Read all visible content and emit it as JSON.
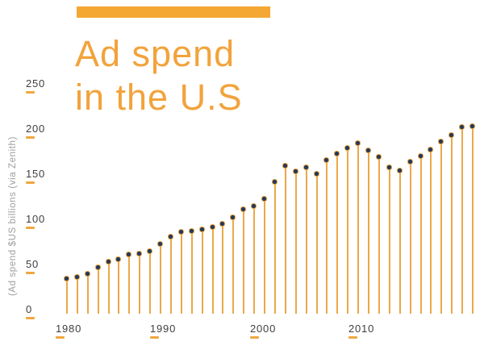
{
  "header": {
    "title_line1": "Ad spend",
    "title_line2": "in the U.S"
  },
  "colors": {
    "accent_orange": "#F5A733",
    "stem_orange": "#ECA847",
    "dot_navy": "#24395E",
    "tick_text_dark": "#3E3E3E",
    "axis_caption_gray": "#9D9D9D",
    "tick_dash_amber": "#F0A73F"
  },
  "chart_data": {
    "type": "lollipop",
    "title": "Ad spend in the U.S",
    "ylabel": "(Ad spend $US billions (via Zenith)",
    "xlabel": "",
    "ylim": [
      0,
      250
    ],
    "grid": false,
    "legend": null,
    "y_ticks": [
      0,
      50,
      100,
      150,
      200,
      250
    ],
    "x_ticks": [
      1980,
      1990,
      2000,
      2010
    ],
    "x": [
      1980,
      1981,
      1982,
      1983,
      1984,
      1985,
      1986,
      1987,
      1988,
      1989,
      1990,
      1991,
      1992,
      1993,
      1994,
      1995,
      1996,
      1997,
      1998,
      1999,
      2000,
      2001,
      2002,
      2003,
      2004,
      2005,
      2006,
      2007,
      2008,
      2009,
      2010,
      2011,
      2012,
      2013,
      2014,
      2015,
      2016,
      2017,
      2018,
      2019
    ],
    "values": [
      34,
      36,
      39,
      46,
      53,
      55,
      61,
      62,
      64,
      72,
      80,
      86,
      87,
      88,
      91,
      95,
      102,
      111,
      114,
      122,
      141,
      159,
      153,
      157,
      150,
      165,
      172,
      179,
      184,
      176,
      169,
      157,
      154,
      163,
      170,
      177,
      186,
      193,
      202,
      203
    ]
  }
}
